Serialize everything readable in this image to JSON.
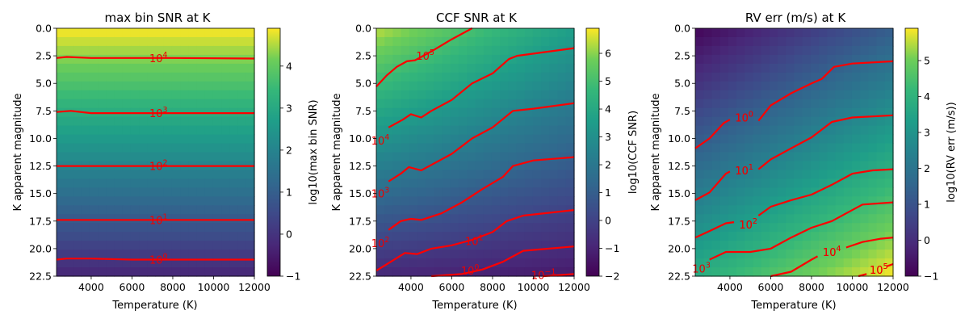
{
  "chart_data": [
    {
      "type": "heatmap",
      "title": "max bin SNR at K",
      "xlabel": "Temperature (K)",
      "ylabel": "K apparent magnitude",
      "xlim": [
        2300,
        12000
      ],
      "ylim": [
        0,
        22.5
      ],
      "y_inverted": true,
      "xticks": [
        "4000",
        "6000",
        "8000",
        "10000",
        "12000"
      ],
      "yticks": [
        "0.0",
        "2.5",
        "5.0",
        "7.5",
        "10.0",
        "12.5",
        "15.0",
        "17.5",
        "20.0",
        "22.5"
      ],
      "colorbar_label": "log10(max bin SNR)",
      "colorbar_range": [
        -1,
        4.9
      ],
      "colorbar_ticks": [
        "−1",
        "0",
        "1",
        "2",
        "3",
        "4"
      ],
      "colormap": "viridis",
      "field": {
        "top_value": 4.9,
        "bottom_value": -0.3
      },
      "contours": [
        {
          "label_base": "10",
          "label_exp": "4",
          "points": [
            [
              2300,
              2.7
            ],
            [
              2800,
              2.6
            ],
            [
              4000,
              2.7
            ],
            [
              6000,
              2.7
            ],
            [
              8000,
              2.7
            ],
            [
              12000,
              2.75
            ]
          ],
          "label_x": 7300
        },
        {
          "label_base": "10",
          "label_exp": "3",
          "points": [
            [
              2300,
              7.6
            ],
            [
              3000,
              7.5
            ],
            [
              4000,
              7.7
            ],
            [
              6000,
              7.7
            ],
            [
              8000,
              7.7
            ],
            [
              12000,
              7.7
            ]
          ],
          "label_x": 7300
        },
        {
          "label_base": "10",
          "label_exp": "2",
          "points": [
            [
              2300,
              12.5
            ],
            [
              4000,
              12.5
            ],
            [
              8000,
              12.5
            ],
            [
              12000,
              12.5
            ]
          ],
          "label_x": 7300
        },
        {
          "label_base": "10",
          "label_exp": "1",
          "points": [
            [
              2300,
              17.4
            ],
            [
              4000,
              17.4
            ],
            [
              8000,
              17.4
            ],
            [
              12000,
              17.4
            ]
          ],
          "label_x": 7300
        },
        {
          "label_base": "10",
          "label_exp": "0",
          "points": [
            [
              2300,
              21.0
            ],
            [
              2800,
              20.9
            ],
            [
              4000,
              20.9
            ],
            [
              6000,
              21.0
            ],
            [
              8000,
              21.0
            ],
            [
              12000,
              21.0
            ]
          ],
          "label_x": 7300
        }
      ]
    },
    {
      "type": "heatmap",
      "title": "CCF SNR at K",
      "xlabel": "Temperature (K)",
      "ylabel": "K apparent magnitude",
      "xlim": [
        2300,
        12000
      ],
      "ylim": [
        0,
        22.5
      ],
      "y_inverted": true,
      "xticks": [
        "4000",
        "6000",
        "8000",
        "10000",
        "12000"
      ],
      "yticks": [
        "0.0",
        "2.5",
        "5.0",
        "7.5",
        "10.0",
        "12.5",
        "15.0",
        "17.5",
        "20.0",
        "22.5"
      ],
      "colorbar_label": "log10(CCF SNR)",
      "colorbar_range": [
        -2,
        6.9
      ],
      "colorbar_ticks": [
        "−2",
        "−1",
        "0",
        "1",
        "2",
        "3",
        "4",
        "5",
        "6"
      ],
      "colormap": "viridis",
      "field": {
        "top_left": 6.4,
        "top_right": 3.6,
        "bottom_left": -0.9,
        "bottom_right": -1.3
      },
      "contours": [
        {
          "label_base": "10",
          "label_exp": "5",
          "points": [
            [
              2300,
              5.3
            ],
            [
              2800,
              4.3
            ],
            [
              3300,
              3.5
            ],
            [
              3800,
              3.0
            ],
            [
              4200,
              2.9
            ],
            [
              5000,
              2.1
            ],
            [
              6000,
              1.0
            ],
            [
              7000,
              0
            ]
          ],
          "label_x": 4700,
          "label_y": 2.5
        },
        {
          "label_base": "10",
          "label_exp": "4",
          "points": [
            [
              2900,
              9.0
            ],
            [
              3600,
              8.3
            ],
            [
              4000,
              7.8
            ],
            [
              4500,
              8.1
            ],
            [
              5000,
              7.5
            ],
            [
              6000,
              6.5
            ],
            [
              7000,
              5.0
            ],
            [
              8000,
              4.1
            ],
            [
              8800,
              2.8
            ],
            [
              9200,
              2.5
            ],
            [
              12000,
              1.8
            ]
          ],
          "label_x": 2500,
          "label_y": 10.2
        },
        {
          "label_base": "10",
          "label_exp": "3",
          "points": [
            [
              2900,
              13.9
            ],
            [
              3500,
              13.2
            ],
            [
              3900,
              12.6
            ],
            [
              4500,
              12.9
            ],
            [
              5000,
              12.4
            ],
            [
              6000,
              11.4
            ],
            [
              7000,
              10.0
            ],
            [
              8000,
              9.0
            ],
            [
              9000,
              7.5
            ],
            [
              10000,
              7.3
            ],
            [
              12000,
              6.8
            ]
          ],
          "label_x": 2500,
          "label_y": 15.0
        },
        {
          "label_base": "10",
          "label_exp": "2",
          "points": [
            [
              2900,
              18.3
            ],
            [
              3500,
              17.5
            ],
            [
              4000,
              17.3
            ],
            [
              4500,
              17.4
            ],
            [
              5500,
              16.8
            ],
            [
              6500,
              15.8
            ],
            [
              7500,
              14.6
            ],
            [
              8500,
              13.5
            ],
            [
              9000,
              12.5
            ],
            [
              10000,
              12.0
            ],
            [
              12000,
              11.7
            ]
          ],
          "label_x": 2500,
          "label_y": 19.5
        },
        {
          "label_base": "10",
          "label_exp": "1",
          "points": [
            [
              2300,
              22.0
            ],
            [
              3000,
              21.2
            ],
            [
              3700,
              20.4
            ],
            [
              4300,
              20.5
            ],
            [
              5000,
              20.0
            ],
            [
              6000,
              19.7
            ],
            [
              7000,
              19.2
            ],
            [
              8000,
              18.5
            ],
            [
              8700,
              17.5
            ],
            [
              9500,
              17.0
            ],
            [
              12000,
              16.5
            ]
          ],
          "label_x": 7100,
          "label_y": 19.3
        },
        {
          "label_base": "10",
          "label_exp": "0",
          "points": [
            [
              5000,
              22.5
            ],
            [
              6500,
              22.3
            ],
            [
              7500,
              21.9
            ],
            [
              8500,
              21.2
            ],
            [
              9500,
              20.2
            ],
            [
              12000,
              19.8
            ]
          ],
          "label_x": 6900,
          "label_y": 22.0
        },
        {
          "label_base": "10",
          "label_exp": "−1",
          "points": [
            [
              10500,
              22.5
            ],
            [
              12000,
              22.3
            ]
          ],
          "label_x": 10500,
          "label_y": 22.4
        }
      ]
    },
    {
      "type": "heatmap",
      "title": "RV err (m/s) at K",
      "xlabel": "Temperature (K)",
      "ylabel": "K apparent magnitude",
      "xlim": [
        2300,
        12000
      ],
      "ylim": [
        0,
        22.5
      ],
      "y_inverted": true,
      "xticks": [
        "4000",
        "6000",
        "8000",
        "10000",
        "12000"
      ],
      "yticks": [
        "0.0",
        "2.5",
        "5.0",
        "7.5",
        "10.0",
        "12.5",
        "15.0",
        "17.5",
        "20.0",
        "22.5"
      ],
      "colorbar_label": "log10(RV err (m/s))",
      "colorbar_range": [
        -1,
        5.9
      ],
      "colorbar_ticks": [
        "−1",
        "0",
        "1",
        "2",
        "3",
        "4",
        "5"
      ],
      "colormap": "viridis",
      "field": {
        "top_left": -0.9,
        "top_right": 1.3,
        "bottom_left": 3.8,
        "bottom_right": 5.9
      },
      "contours": [
        {
          "label_base": "10",
          "label_exp": "0",
          "points": [
            [
              2300,
              10.9
            ],
            [
              3000,
              10.0
            ],
            [
              3700,
              8.6
            ],
            [
              4000,
              8.3
            ]
          ],
          "label_x": 4700,
          "label_y": 8.1
        },
        {
          "label_base": "10",
          "label_exp": "0",
          "points": [
            [
              5400,
              8.4
            ],
            [
              6000,
              7.0
            ],
            [
              7000,
              5.9
            ],
            [
              8000,
              5.0
            ],
            [
              8500,
              4.6
            ],
            [
              9100,
              3.5
            ],
            [
              10000,
              3.2
            ],
            [
              12000,
              3.0
            ]
          ],
          "label_x": 4700,
          "label_y": 8.1
        },
        {
          "label_base": "10",
          "label_exp": "1",
          "points": [
            [
              2300,
              15.6
            ],
            [
              3000,
              14.9
            ],
            [
              3800,
              13.2
            ],
            [
              4000,
              13.0
            ]
          ],
          "label_x": 4700,
          "label_y": 12.9
        },
        {
          "label_base": "10",
          "label_exp": "1",
          "points": [
            [
              5400,
              12.8
            ],
            [
              6000,
              11.9
            ],
            [
              7000,
              10.9
            ],
            [
              8000,
              9.9
            ],
            [
              9000,
              8.5
            ],
            [
              10000,
              8.1
            ],
            [
              12000,
              7.9
            ]
          ],
          "label_x": 4700,
          "label_y": 12.9
        },
        {
          "label_base": "10",
          "label_exp": "2",
          "points": [
            [
              2300,
              19.0
            ],
            [
              3000,
              18.4
            ],
            [
              3800,
              17.7
            ],
            [
              4200,
              17.6
            ]
          ],
          "label_x": 4900,
          "label_y": 17.8
        },
        {
          "label_base": "10",
          "label_exp": "2",
          "points": [
            [
              5400,
              17.0
            ],
            [
              6000,
              16.2
            ],
            [
              7000,
              15.6
            ],
            [
              8000,
              15.1
            ],
            [
              9000,
              14.2
            ],
            [
              10000,
              13.2
            ],
            [
              11000,
              12.9
            ],
            [
              12000,
              12.8
            ]
          ],
          "label_x": 4900,
          "label_y": 17.8
        },
        {
          "label_base": "10",
          "label_exp": "3",
          "points": [
            [
              3000,
              21.0
            ],
            [
              3800,
              20.3
            ],
            [
              5000,
              20.3
            ],
            [
              6000,
              20.0
            ],
            [
              7000,
              19.0
            ],
            [
              8000,
              18.1
            ],
            [
              9000,
              17.5
            ],
            [
              9700,
              16.8
            ],
            [
              10500,
              16.0
            ],
            [
              12000,
              15.8
            ]
          ],
          "label_x": 2600,
          "label_y": 21.8
        },
        {
          "label_base": "10",
          "label_exp": "4",
          "points": [
            [
              6000,
              22.5
            ],
            [
              7000,
              22.1
            ],
            [
              8000,
              21.0
            ],
            [
              8300,
              20.7
            ]
          ],
          "label_x": 9000,
          "label_y": 20.3
        },
        {
          "label_base": "10",
          "label_exp": "4",
          "points": [
            [
              9700,
              19.9
            ],
            [
              10500,
              19.4
            ],
            [
              11400,
              19.1
            ],
            [
              12000,
              19.0
            ]
          ],
          "label_x": 9000,
          "label_y": 20.3
        },
        {
          "label_base": "10",
          "label_exp": "5",
          "points": [
            [
              10300,
              22.5
            ],
            [
              10700,
              22.3
            ]
          ],
          "label_x": 11300,
          "label_y": 21.9
        },
        {
          "label_base": "10",
          "label_exp": "5",
          "points": [
            [
              11700,
              21.6
            ],
            [
              12000,
              21.4
            ]
          ],
          "label_x": 11300,
          "label_y": 21.9
        }
      ]
    }
  ]
}
